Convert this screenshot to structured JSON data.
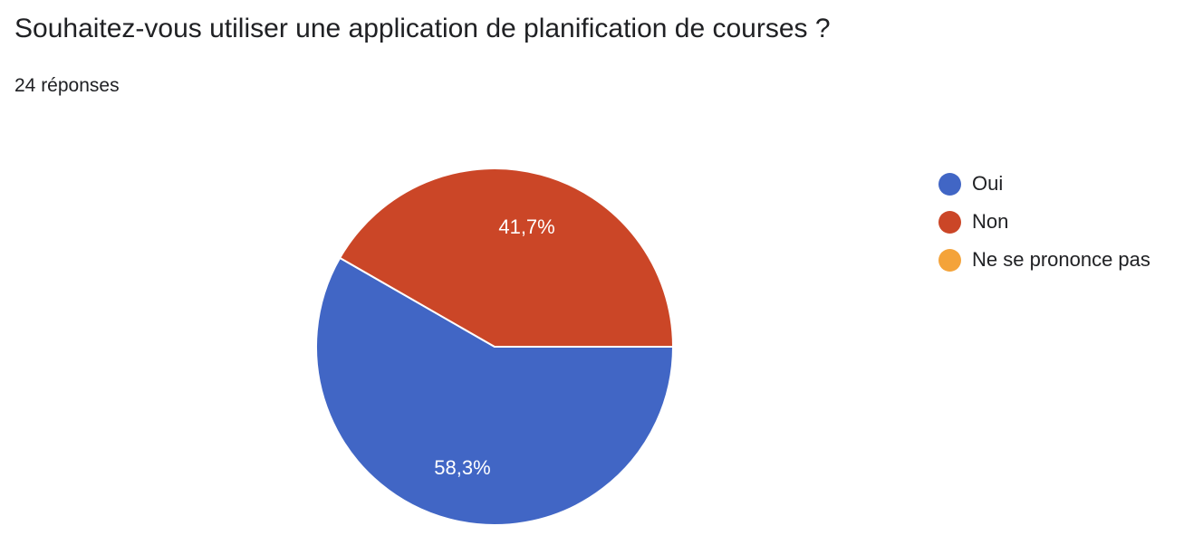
{
  "header": {
    "title": "Souhaitez-vous utiliser une application de planification de courses ?",
    "responses": "24 réponses"
  },
  "chart_data": {
    "type": "pie",
    "title": "Souhaitez-vous utiliser une application de planification de courses ?",
    "total_responses": 24,
    "legend_position": "right",
    "slices": [
      {
        "label": "Oui",
        "value": 58.3,
        "display": "58,3%",
        "color": "#4166c5"
      },
      {
        "label": "Non",
        "value": 41.7,
        "display": "41,7%",
        "color": "#cb4627"
      },
      {
        "label": "Ne se prononce pas",
        "value": 0,
        "display": "",
        "color": "#f4a33a"
      }
    ]
  }
}
